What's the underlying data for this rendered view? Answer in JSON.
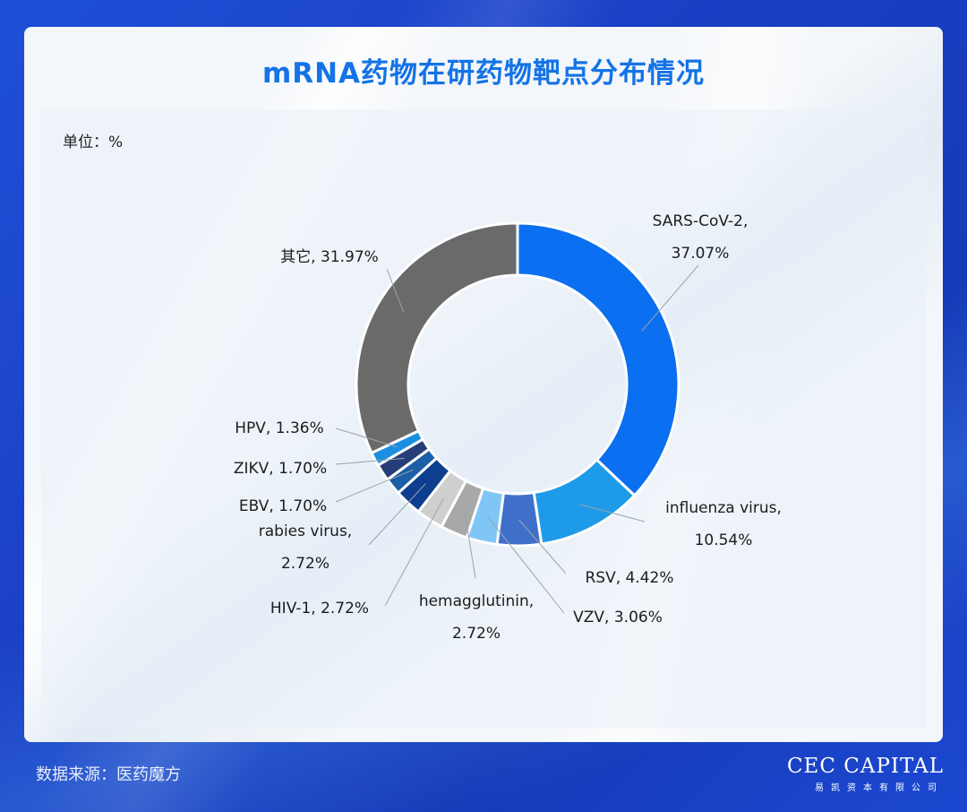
{
  "header": {
    "title": "mRNA药物在研药物靶点分布情况"
  },
  "unit_label": "单位：%",
  "footer": {
    "source": "数据来源：医药魔方"
  },
  "brand": {
    "name": "CEC CAPITAL",
    "sub": "易凯资本有限公司"
  },
  "chart_data": {
    "type": "pie",
    "donut": true,
    "title": "mRNA药物在研药物靶点分布情况",
    "unit": "%",
    "slices": [
      {
        "name": "SARS-CoV-2",
        "value": 37.07,
        "color": "#0a6ff0",
        "label_lines": [
          "SARS-CoV-2,",
          "37.07%"
        ]
      },
      {
        "name": "influenza virus",
        "value": 10.54,
        "color": "#1e9be8",
        "label_lines": [
          "influenza virus,",
          "10.54%"
        ]
      },
      {
        "name": "RSV",
        "value": 4.42,
        "color": "#3f6fc9",
        "label_lines": [
          "RSV, 4.42%"
        ]
      },
      {
        "name": "VZV",
        "value": 3.06,
        "color": "#7fc6f7",
        "label_lines": [
          "VZV, 3.06%"
        ]
      },
      {
        "name": "hemagglutinin",
        "value": 2.72,
        "color": "#a8a8a8",
        "label_lines": [
          "hemagglutinin,",
          "2.72%"
        ]
      },
      {
        "name": "HIV-1",
        "value": 2.72,
        "color": "#cfcfcf",
        "label_lines": [
          "HIV-1, 2.72%"
        ]
      },
      {
        "name": "rabies virus",
        "value": 2.72,
        "color": "#0d3f8e",
        "label_lines": [
          "rabies virus,",
          "2.72%"
        ]
      },
      {
        "name": "EBV",
        "value": 1.7,
        "color": "#1b5fa6",
        "label_lines": [
          "EBV, 1.70%"
        ]
      },
      {
        "name": "ZIKV",
        "value": 1.7,
        "color": "#263e78",
        "label_lines": [
          "ZIKV, 1.70%"
        ]
      },
      {
        "name": "HPV",
        "value": 1.36,
        "color": "#1a8fe0",
        "label_lines": [
          "HPV, 1.36%"
        ]
      },
      {
        "name": "其它",
        "value": 31.97,
        "color": "#6a6a6a",
        "label_lines": [
          "其它, 31.97%"
        ]
      }
    ]
  }
}
